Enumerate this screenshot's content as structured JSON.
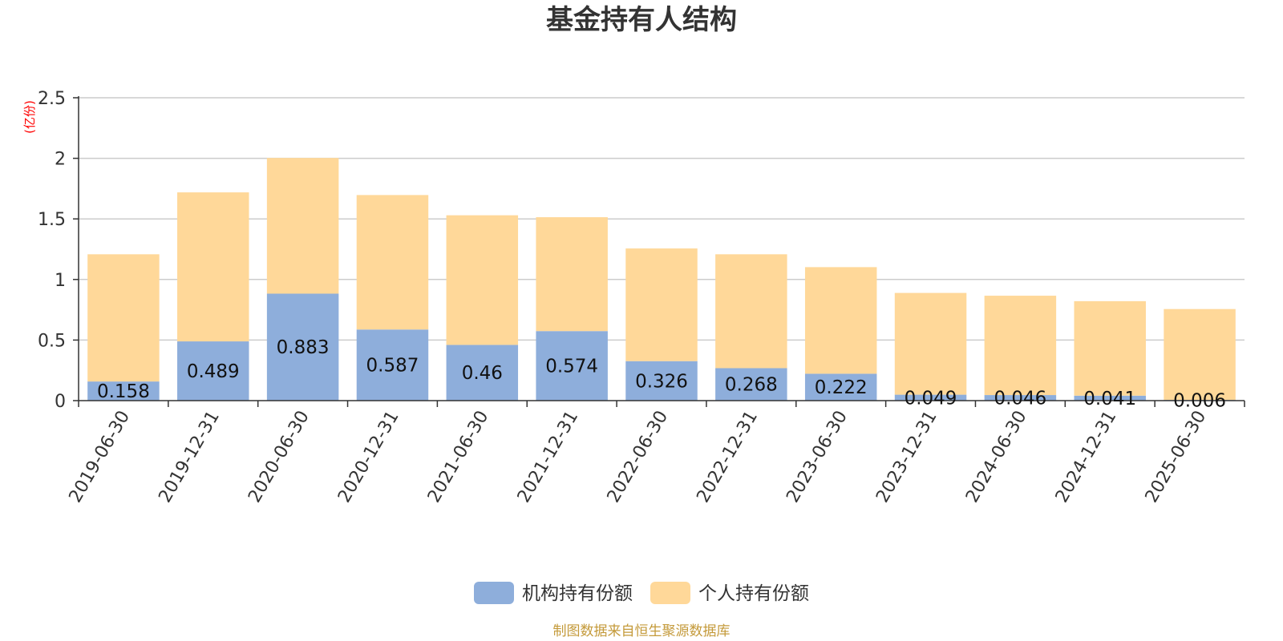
{
  "chart_data": {
    "type": "bar",
    "stacked": true,
    "title": "基金持有人结构",
    "y_unit": "(亿份)",
    "ylim": [
      0,
      2.5
    ],
    "y_ticks": [
      "0",
      "0.5",
      "1",
      "1.5",
      "2",
      "2.5"
    ],
    "categories": [
      "2019-06-30",
      "2019-12-31",
      "2020-06-30",
      "2020-12-31",
      "2021-06-30",
      "2021-12-31",
      "2022-06-30",
      "2022-12-31",
      "2023-06-30",
      "2023-12-31",
      "2024-06-30",
      "2024-12-31",
      "2025-06-30"
    ],
    "series": [
      {
        "name": "机构持有份额",
        "color": "#8eaedb",
        "values": [
          0.158,
          0.489,
          0.883,
          0.587,
          0.46,
          0.574,
          0.326,
          0.268,
          0.222,
          0.049,
          0.046,
          0.041,
          0.006
        ],
        "labels": [
          "0.158",
          "0.489",
          "0.883",
          "0.587",
          "0.46",
          "0.574",
          "0.326",
          "0.268",
          "0.222",
          "0.049",
          "0.046",
          "0.041",
          "0.006"
        ]
      },
      {
        "name": "个人持有份额",
        "color": "#ffd899",
        "values": [
          1.05,
          1.23,
          1.12,
          1.11,
          1.07,
          0.94,
          0.93,
          0.94,
          0.88,
          0.84,
          0.82,
          0.78,
          0.75
        ]
      }
    ],
    "legend_position": "bottom-center",
    "grid": true
  },
  "source_note": "制图数据来自恒生聚源数据库",
  "colors": {
    "title": "#333333",
    "unit": "#ff0000",
    "source": "#c49a3a",
    "grid": "#cccccc",
    "axis": "#333333"
  }
}
